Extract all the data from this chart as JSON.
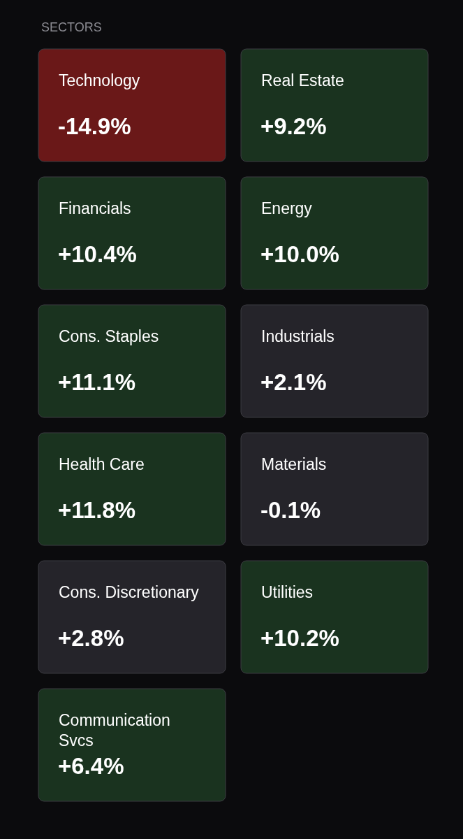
{
  "chart_data": {
    "type": "other",
    "title": "SECTORS",
    "categories": [
      "Technology",
      "Real Estate",
      "Financials",
      "Energy",
      "Cons. Staples",
      "Industrials",
      "Health Care",
      "Materials",
      "Cons. Discretionary",
      "Utilities",
      "Communication Svcs"
    ],
    "values": [
      -14.9,
      9.2,
      10.4,
      10.0,
      11.1,
      2.1,
      11.8,
      -0.1,
      2.8,
      10.2,
      6.4
    ],
    "value_labels": [
      "-14.9%",
      "+9.2%",
      "+10.4%",
      "+10.0%",
      "+11.1%",
      "+2.1%",
      "+11.8%",
      "-0.1%",
      "+2.8%",
      "+10.2%",
      "+6.4%"
    ],
    "colors": [
      "#6a1818",
      "#1a331f",
      "#1a331f",
      "#1a331f",
      "#1a331f",
      "#25242a",
      "#1a331f",
      "#25242a",
      "#25242a",
      "#1a331f",
      "#1a331f"
    ]
  }
}
